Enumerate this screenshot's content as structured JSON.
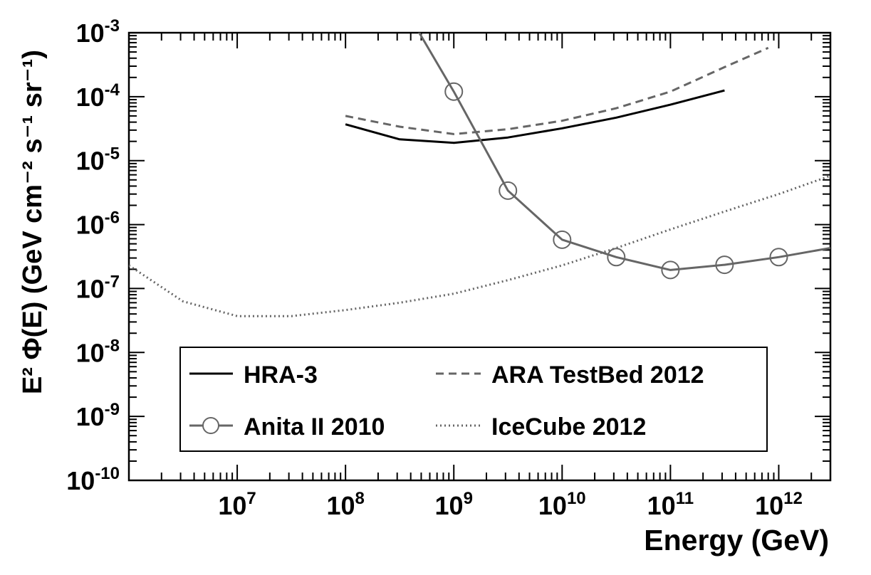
{
  "chart_data": {
    "type": "line",
    "xlabel": "Energy (GeV)",
    "ylabel": "E² Φ(E) (GeV cm⁻² s⁻¹ sr⁻¹)",
    "xscale": "log",
    "yscale": "log",
    "xlim": [
      1000000,
      3000000000000
    ],
    "ylim": [
      1e-10,
      0.001
    ],
    "grid": false,
    "legend_position": "bottom-center",
    "x_ticks": [
      {
        "value": 10000000,
        "base": "10",
        "exp": "7"
      },
      {
        "value": 100000000,
        "base": "10",
        "exp": "8"
      },
      {
        "value": 1000000000,
        "base": "10",
        "exp": "9"
      },
      {
        "value": 10000000000,
        "base": "10",
        "exp": "10"
      },
      {
        "value": 100000000000,
        "base": "10",
        "exp": "11"
      },
      {
        "value": 1000000000000,
        "base": "10",
        "exp": "12"
      }
    ],
    "y_ticks": [
      {
        "value": 1e-10,
        "base": "10",
        "exp": "-10"
      },
      {
        "value": 1e-09,
        "base": "10",
        "exp": "-9"
      },
      {
        "value": 1e-08,
        "base": "10",
        "exp": "-8"
      },
      {
        "value": 1e-07,
        "base": "10",
        "exp": "-7"
      },
      {
        "value": 1e-06,
        "base": "10",
        "exp": "-6"
      },
      {
        "value": 1e-05,
        "base": "10",
        "exp": "-5"
      },
      {
        "value": 0.0001,
        "base": "10",
        "exp": "-4"
      },
      {
        "value": 0.001,
        "base": "10",
        "exp": "-3"
      }
    ],
    "series": [
      {
        "name": "HRA-3",
        "color": "#000000",
        "style": "solid",
        "marker": "none",
        "points": [
          [
            100000000,
            3.7e-05
          ],
          [
            316000000,
            2.15e-05
          ],
          [
            1000000000,
            1.9e-05
          ],
          [
            3160000000,
            2.3e-05
          ],
          [
            10000000000,
            3.2e-05
          ],
          [
            31600000000,
            4.7e-05
          ],
          [
            100000000000,
            7.5e-05
          ],
          [
            316000000000,
            0.000125
          ]
        ]
      },
      {
        "name": "ARA TestBed 2012",
        "color": "#666666",
        "style": "dashed",
        "marker": "none",
        "points": [
          [
            100000000,
            5e-05
          ],
          [
            316000000,
            3.4e-05
          ],
          [
            1000000000,
            2.6e-05
          ],
          [
            3160000000,
            3.1e-05
          ],
          [
            10000000000,
            4.2e-05
          ],
          [
            31600000000,
            6.6e-05
          ],
          [
            100000000000,
            0.00012
          ],
          [
            316000000000,
            0.00029
          ],
          [
            800000000000,
            0.00058
          ]
        ]
      },
      {
        "name": "Anita II 2010",
        "color": "#666666",
        "style": "solid",
        "marker": "circle",
        "points": [
          [
            450000000,
            0.0012
          ],
          [
            1000000000,
            0.00012
          ],
          [
            3160000000,
            3.4e-06
          ],
          [
            10000000000,
            5.8e-07
          ],
          [
            31600000000,
            3.1e-07
          ],
          [
            100000000000,
            1.95e-07
          ],
          [
            316000000000,
            2.35e-07
          ],
          [
            1000000000000,
            3.1e-07
          ],
          [
            3000000000000,
            4.3e-07
          ]
        ],
        "marker_points": [
          [
            1000000000,
            0.00012
          ],
          [
            3160000000,
            3.4e-06
          ],
          [
            10000000000,
            5.8e-07
          ],
          [
            31600000000,
            3.1e-07
          ],
          [
            100000000000,
            1.95e-07
          ],
          [
            316000000000,
            2.35e-07
          ],
          [
            1000000000000,
            3.1e-07
          ]
        ]
      },
      {
        "name": "IceCube 2012",
        "color": "#666666",
        "style": "dotted",
        "marker": "none",
        "points": [
          [
            1000000,
            2.3e-07
          ],
          [
            3160000,
            6.3e-08
          ],
          [
            10000000,
            3.7e-08
          ],
          [
            31600000,
            3.7e-08
          ],
          [
            100000000,
            4.6e-08
          ],
          [
            316000000,
            6e-08
          ],
          [
            1000000000,
            8.3e-08
          ],
          [
            3160000000,
            1.35e-07
          ],
          [
            10000000000,
            2.3e-07
          ],
          [
            31600000000,
            4.3e-07
          ],
          [
            100000000000,
            8.4e-07
          ],
          [
            316000000000,
            1.6e-06
          ],
          [
            1000000000000,
            3e-06
          ],
          [
            3000000000000,
            5.8e-06
          ]
        ]
      }
    ]
  }
}
